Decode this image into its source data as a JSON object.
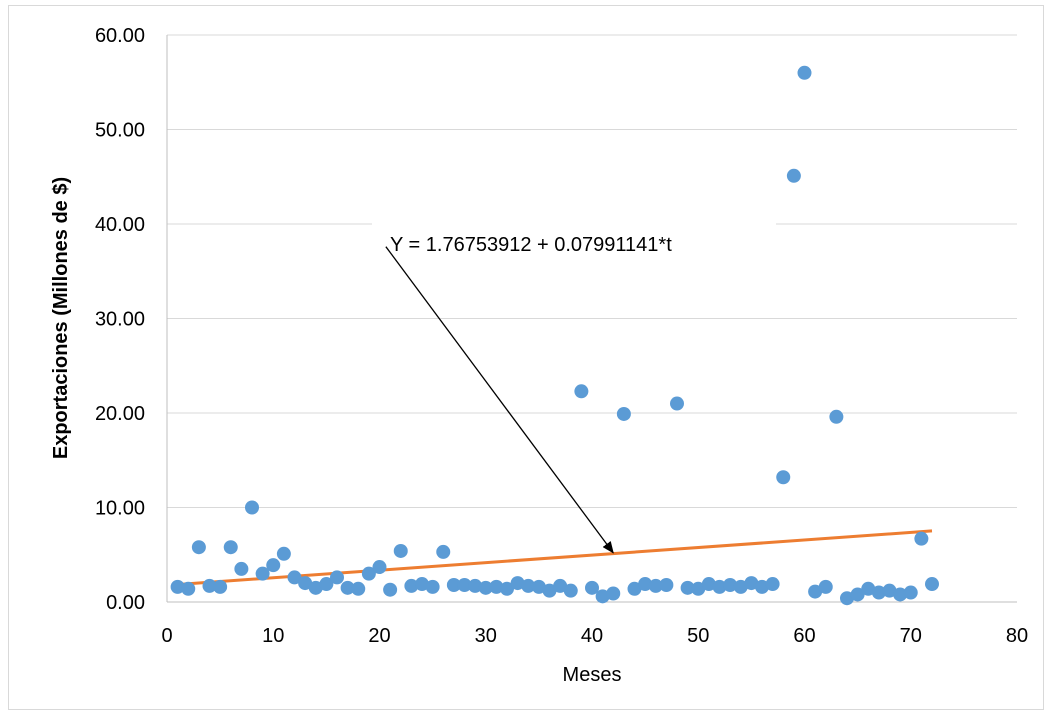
{
  "chart_data": {
    "type": "scatter",
    "title": "",
    "xlabel": "Meses",
    "ylabel": "Exportaciones (Millones de $)",
    "xlim": [
      0,
      80
    ],
    "ylim": [
      0,
      60
    ],
    "x_ticks": [
      0,
      10,
      20,
      30,
      40,
      50,
      60,
      70,
      80
    ],
    "y_ticks": [
      0,
      10,
      20,
      30,
      40,
      50,
      60
    ],
    "x_tick_labels": [
      "0",
      "10",
      "20",
      "30",
      "40",
      "50",
      "60",
      "70",
      "80"
    ],
    "y_tick_labels": [
      "0.00",
      "10.00",
      "20.00",
      "30.00",
      "40.00",
      "50.00",
      "60.00"
    ],
    "grid": "horizontal",
    "legend": "none",
    "colors": {
      "points": "#5b9bd5",
      "trend": "#ed7d31",
      "grid": "#d9d9d9",
      "axis": "#bfbfbf"
    },
    "series": [
      {
        "kind": "points",
        "x": [
          1,
          2,
          3,
          4,
          5,
          6,
          7,
          8,
          9,
          10,
          11,
          12,
          13,
          14,
          15,
          16,
          17,
          18,
          19,
          20,
          21,
          22,
          23,
          24,
          25,
          26,
          27,
          28,
          29,
          30,
          31,
          32,
          33,
          34,
          35,
          36,
          37,
          38,
          39,
          40,
          41,
          42,
          43,
          44,
          45,
          46,
          47,
          48,
          49,
          50,
          51,
          52,
          53,
          54,
          55,
          56,
          57,
          58,
          59,
          60,
          61,
          62,
          63,
          64,
          65,
          66,
          67,
          68,
          69,
          70,
          71,
          72
        ],
        "y": [
          1.6,
          1.4,
          5.8,
          1.7,
          1.6,
          5.8,
          3.5,
          10.0,
          3.0,
          3.9,
          5.1,
          2.6,
          2.0,
          1.5,
          1.9,
          2.6,
          1.5,
          1.4,
          3.0,
          3.7,
          1.3,
          5.4,
          1.7,
          1.9,
          1.6,
          5.3,
          1.8,
          1.8,
          1.7,
          1.5,
          1.6,
          1.4,
          2.0,
          1.7,
          1.6,
          1.2,
          1.7,
          1.2,
          22.3,
          1.5,
          0.6,
          0.9,
          19.9,
          1.4,
          1.9,
          1.7,
          1.8,
          21.0,
          1.5,
          1.4,
          1.9,
          1.6,
          1.8,
          1.6,
          2.0,
          1.6,
          1.9,
          13.2,
          45.1,
          56.0,
          1.1,
          1.6,
          19.6,
          0.4,
          0.8,
          1.4,
          1.0,
          1.2,
          0.8,
          1.0,
          6.7,
          1.9
        ]
      },
      {
        "kind": "trendline",
        "intercept": 1.76753912,
        "slope": 0.07991141,
        "x_range": [
          1,
          72
        ]
      }
    ],
    "annotations": [
      {
        "text": "Y = 1.76753912 + 0.07991141*t",
        "arrow_to": [
          42,
          5.2
        ],
        "arrow_from": [
          20.6,
          37.6
        ]
      }
    ]
  }
}
